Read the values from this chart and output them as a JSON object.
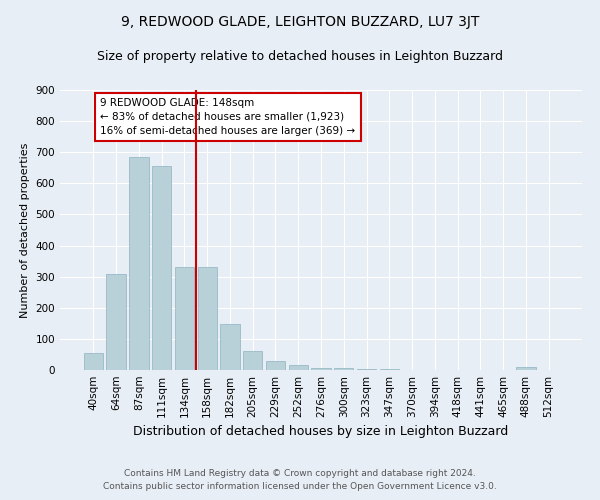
{
  "title": "9, REDWOOD GLADE, LEIGHTON BUZZARD, LU7 3JT",
  "subtitle": "Size of property relative to detached houses in Leighton Buzzard",
  "xlabel": "Distribution of detached houses by size in Leighton Buzzard",
  "ylabel": "Number of detached properties",
  "footnote1": "Contains HM Land Registry data © Crown copyright and database right 2024.",
  "footnote2": "Contains public sector information licensed under the Open Government Licence v3.0.",
  "bar_labels": [
    "40sqm",
    "64sqm",
    "87sqm",
    "111sqm",
    "134sqm",
    "158sqm",
    "182sqm",
    "205sqm",
    "229sqm",
    "252sqm",
    "276sqm",
    "300sqm",
    "323sqm",
    "347sqm",
    "370sqm",
    "394sqm",
    "418sqm",
    "441sqm",
    "465sqm",
    "488sqm",
    "512sqm"
  ],
  "bar_values": [
    55,
    310,
    685,
    655,
    330,
    330,
    148,
    60,
    28,
    15,
    8,
    5,
    3,
    2,
    1,
    1,
    0,
    0,
    0,
    10,
    0
  ],
  "bar_color": "#B8D0D8",
  "bar_edge_color": "#8FB4C0",
  "vline_color": "#CC0000",
  "vline_x_index": 4.5,
  "annotation_text": "9 REDWOOD GLADE: 148sqm\n← 83% of detached houses are smaller (1,923)\n16% of semi-detached houses are larger (369) →",
  "annotation_box_color": "#ffffff",
  "annotation_box_edge_color": "#CC0000",
  "ylim": [
    0,
    900
  ],
  "yticks": [
    0,
    100,
    200,
    300,
    400,
    500,
    600,
    700,
    800,
    900
  ],
  "bg_color": "#E8EEF5",
  "title_fontsize": 10,
  "subtitle_fontsize": 9,
  "xlabel_fontsize": 9,
  "ylabel_fontsize": 8,
  "tick_fontsize": 7.5,
  "footnote_fontsize": 6.5
}
